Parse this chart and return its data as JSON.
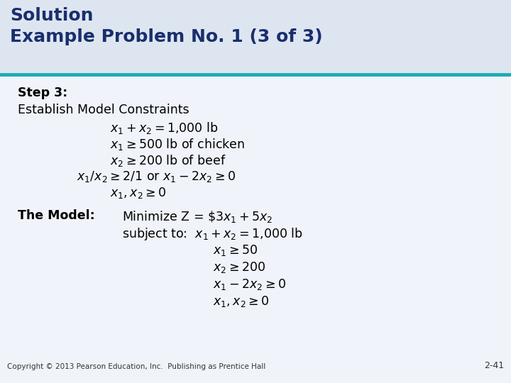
{
  "title_line1": "Solution",
  "title_line2": "Example Problem No. 1 (3 of 3)",
  "title_bg_color": "#dde6f0",
  "title_text_color": "#1a2e6e",
  "separator_color": "#1aacb8",
  "body_bg_color": "#f0f4fa",
  "step_label": "Step 3:",
  "body_fontsize": 12.5,
  "title_fontsize": 18,
  "copyright": "Copyright © 2013 Pearson Education, Inc.  Publishing as Prentice Hall",
  "page_num": "2-41",
  "watermark_color": "#c8d0dc"
}
